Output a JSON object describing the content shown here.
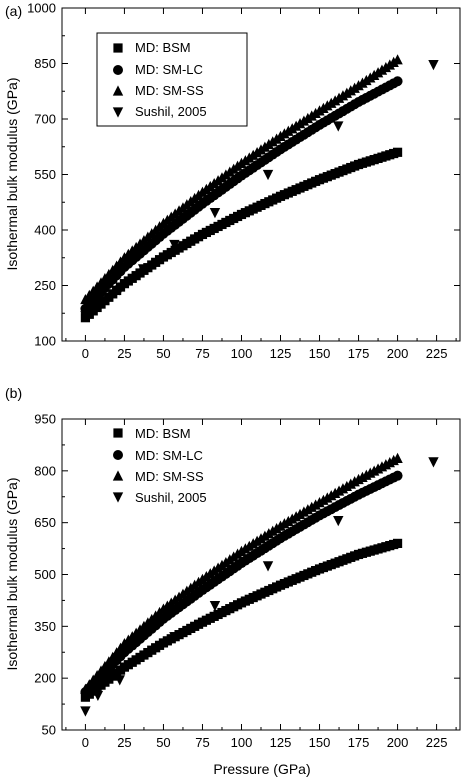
{
  "chart_data": [
    {
      "panel_label": "(a)",
      "type": "scatter",
      "ylabel": "Isothermal bulk modulus (GPa)",
      "xlabel": "",
      "xlim": [
        -15,
        240
      ],
      "ylim": [
        100,
        1000
      ],
      "x_ticks": [
        0,
        25,
        50,
        75,
        100,
        125,
        150,
        175,
        200,
        225
      ],
      "y_ticks": [
        100,
        250,
        400,
        550,
        700,
        850,
        1000
      ],
      "y_tick_labels": [
        "100",
        "250",
        "400",
        "550",
        "700",
        "850",
        "1000"
      ],
      "legend_position": "top-left",
      "series": [
        {
          "name": "MD: BSM",
          "marker": "square",
          "x": [
            0,
            25,
            50,
            75,
            100,
            125,
            150,
            175,
            200
          ],
          "y": [
            163,
            255,
            327,
            388,
            442,
            491,
            536,
            577,
            610
          ]
        },
        {
          "name": "MD: SM-LC",
          "marker": "circle",
          "x": [
            0,
            25,
            50,
            75,
            100,
            125,
            150,
            175,
            200
          ],
          "y": [
            187,
            300,
            390,
            471,
            547,
            618,
            684,
            746,
            802
          ]
        },
        {
          "name": "MD: SM-SS",
          "marker": "triangle-up",
          "x": [
            0,
            25,
            50,
            75,
            100,
            125,
            150,
            175,
            200
          ],
          "y": [
            212,
            325,
            418,
            502,
            580,
            653,
            722,
            790,
            860
          ]
        },
        {
          "name": "Sushil, 2005",
          "marker": "triangle-down",
          "x": [
            0,
            22,
            37,
            57,
            83,
            117,
            162,
            223
          ],
          "y": [
            168,
            238,
            295,
            361,
            447,
            550,
            681,
            847
          ]
        }
      ]
    },
    {
      "panel_label": "(b)",
      "type": "scatter",
      "ylabel": "Isothermal bulk modulus (GPa)",
      "xlabel": "Pressure (GPa)",
      "xlim": [
        -15,
        240
      ],
      "ylim": [
        50,
        950
      ],
      "x_ticks": [
        0,
        25,
        50,
        75,
        100,
        125,
        150,
        175,
        200,
        225
      ],
      "y_ticks": [
        50,
        200,
        350,
        500,
        650,
        800,
        950
      ],
      "y_tick_labels": [
        "50",
        "200",
        "350",
        "500",
        "650",
        "800",
        "950"
      ],
      "legend_position": "top-left",
      "series": [
        {
          "name": "MD: BSM",
          "marker": "square",
          "x": [
            0,
            25,
            50,
            75,
            100,
            125,
            150,
            175,
            200
          ],
          "y": [
            145,
            232,
            302,
            362,
            418,
            469,
            516,
            558,
            590
          ]
        },
        {
          "name": "MD: SM-LC",
          "marker": "circle",
          "x": [
            0,
            25,
            50,
            75,
            100,
            125,
            150,
            175,
            200
          ],
          "y": [
            160,
            275,
            372,
            455,
            533,
            605,
            671,
            731,
            786
          ]
        },
        {
          "name": "MD: SM-SS",
          "marker": "triangle-up",
          "x": [
            0,
            25,
            50,
            75,
            100,
            125,
            150,
            175,
            200
          ],
          "y": [
            168,
            300,
            400,
            486,
            567,
            640,
            708,
            775,
            836
          ]
        },
        {
          "name": "Sushil, 2005",
          "marker": "triangle-down",
          "x": [
            0,
            8,
            22,
            57,
            83,
            117,
            162,
            223
          ],
          "y": [
            105,
            150,
            195,
            320,
            410,
            525,
            656,
            826
          ]
        }
      ]
    }
  ]
}
